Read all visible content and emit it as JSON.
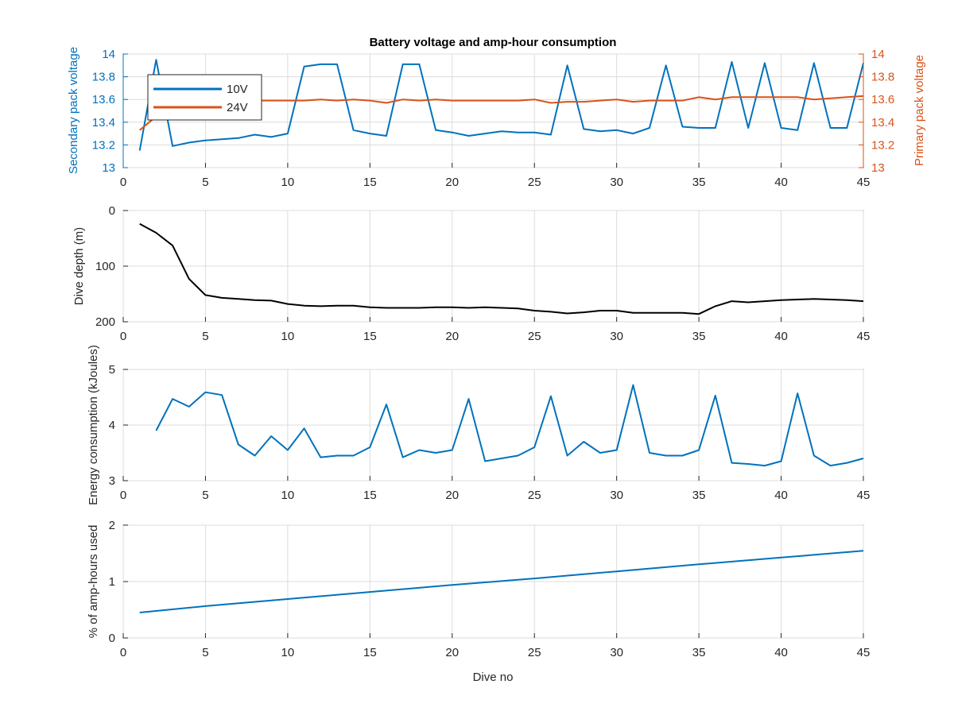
{
  "colors": {
    "blue": "#0072BD",
    "orange": "#D95319",
    "black": "#000000",
    "axis": "#262626",
    "grid": "#dcdcdc"
  },
  "chart_data": [
    {
      "type": "line",
      "title": "Battery voltage and amp-hour consumption",
      "xlabel": "",
      "ylabel": "Secondary pack voltage",
      "ylabel_right": "Primary pack voltage",
      "xlim": [
        0,
        45
      ],
      "ylim": [
        13,
        14
      ],
      "ylim_right": [
        13,
        14
      ],
      "xticks": [
        0,
        5,
        10,
        15,
        20,
        25,
        30,
        35,
        40,
        45
      ],
      "yticks": [
        13,
        13.2,
        13.4,
        13.6,
        13.8,
        14
      ],
      "yticks_right": [
        13,
        13.2,
        13.4,
        13.6,
        13.8,
        14
      ],
      "grid": true,
      "legend": "top-left",
      "series": [
        {
          "name": "10V",
          "axis": "left",
          "color": "#0072BD",
          "x": [
            1,
            2,
            3,
            4,
            5,
            6,
            7,
            8,
            9,
            10,
            11,
            12,
            13,
            14,
            15,
            16,
            17,
            18,
            19,
            20,
            21,
            22,
            23,
            24,
            25,
            26,
            27,
            28,
            29,
            30,
            31,
            32,
            33,
            34,
            35,
            36,
            37,
            38,
            39,
            40,
            41,
            42,
            43,
            44,
            45
          ],
          "values": [
            13.15,
            13.95,
            13.19,
            13.22,
            13.24,
            13.25,
            13.26,
            13.29,
            13.27,
            13.3,
            13.89,
            13.91,
            13.91,
            13.33,
            13.3,
            13.28,
            13.91,
            13.91,
            13.33,
            13.31,
            13.28,
            13.3,
            13.32,
            13.31,
            13.31,
            13.29,
            13.9,
            13.34,
            13.32,
            13.33,
            13.3,
            13.35,
            13.9,
            13.36,
            13.35,
            13.35,
            13.93,
            13.35,
            13.92,
            13.35,
            13.33,
            13.92,
            13.35,
            13.35,
            13.92
          ]
        },
        {
          "name": "24V",
          "axis": "right",
          "color": "#D95319",
          "x": [
            1,
            2,
            3,
            4,
            5,
            6,
            7,
            8,
            9,
            10,
            11,
            12,
            13,
            14,
            15,
            16,
            17,
            18,
            19,
            20,
            21,
            22,
            23,
            24,
            25,
            26,
            27,
            28,
            29,
            30,
            31,
            32,
            33,
            34,
            35,
            36,
            37,
            38,
            39,
            40,
            41,
            42,
            43,
            44,
            45
          ],
          "values": [
            13.33,
            13.45,
            13.55,
            13.57,
            13.58,
            13.59,
            13.59,
            13.59,
            13.59,
            13.59,
            13.59,
            13.6,
            13.59,
            13.6,
            13.59,
            13.57,
            13.6,
            13.59,
            13.6,
            13.59,
            13.59,
            13.59,
            13.59,
            13.59,
            13.6,
            13.57,
            13.58,
            13.58,
            13.59,
            13.6,
            13.58,
            13.59,
            13.59,
            13.59,
            13.62,
            13.6,
            13.62,
            13.62,
            13.62,
            13.62,
            13.62,
            13.6,
            13.61,
            13.62,
            13.63
          ]
        }
      ]
    },
    {
      "type": "line",
      "ylabel": "Dive depth (m)",
      "xlim": [
        0,
        45
      ],
      "ylim": [
        0,
        200
      ],
      "y_reversed": true,
      "xticks": [
        0,
        5,
        10,
        15,
        20,
        25,
        30,
        35,
        40,
        45
      ],
      "yticks": [
        0,
        100,
        200
      ],
      "grid": true,
      "series": [
        {
          "color": "#000000",
          "x": [
            1,
            2,
            3,
            4,
            5,
            6,
            7,
            8,
            9,
            10,
            11,
            12,
            13,
            14,
            15,
            16,
            17,
            18,
            19,
            20,
            21,
            22,
            23,
            24,
            25,
            26,
            27,
            28,
            29,
            30,
            31,
            32,
            33,
            34,
            35,
            36,
            37,
            38,
            39,
            40,
            41,
            42,
            43,
            44,
            45
          ],
          "values": [
            24,
            40,
            63,
            123,
            152,
            157,
            159,
            161,
            162,
            168,
            171,
            172,
            171,
            171,
            174,
            175,
            175,
            175,
            174,
            174,
            175,
            174,
            175,
            176,
            180,
            182,
            185,
            183,
            180,
            180,
            184,
            184,
            184,
            184,
            186,
            172,
            163,
            165,
            163,
            161,
            160,
            159,
            160,
            161,
            163
          ]
        }
      ]
    },
    {
      "type": "line",
      "ylabel": "Energy consumption (kJoules)",
      "xlim": [
        0,
        45
      ],
      "ylim": [
        3,
        5
      ],
      "xticks": [
        0,
        5,
        10,
        15,
        20,
        25,
        30,
        35,
        40,
        45
      ],
      "yticks": [
        3,
        4,
        5
      ],
      "grid": true,
      "series": [
        {
          "color": "#0072BD",
          "x": [
            2,
            3,
            4,
            5,
            6,
            7,
            8,
            9,
            10,
            11,
            12,
            13,
            14,
            15,
            16,
            17,
            18,
            19,
            20,
            21,
            22,
            23,
            24,
            25,
            26,
            27,
            28,
            29,
            30,
            31,
            32,
            33,
            34,
            35,
            36,
            37,
            38,
            39,
            40,
            41,
            42,
            43,
            44,
            45
          ],
          "values": [
            3.9,
            4.47,
            4.33,
            4.59,
            4.54,
            3.65,
            3.45,
            3.8,
            3.55,
            3.94,
            3.42,
            3.45,
            3.45,
            3.6,
            4.37,
            3.42,
            3.55,
            3.5,
            3.55,
            4.47,
            3.35,
            3.4,
            3.45,
            3.6,
            4.52,
            3.45,
            3.7,
            3.5,
            3.55,
            4.72,
            3.5,
            3.45,
            3.45,
            3.55,
            4.53,
            3.32,
            3.3,
            3.27,
            3.35,
            4.57,
            3.45,
            3.27,
            3.32,
            3.4
          ]
        }
      ]
    },
    {
      "type": "line",
      "ylabel": "% of amp-hours used",
      "xlabel": "Dive no",
      "xlim": [
        0,
        45
      ],
      "ylim": [
        0,
        2
      ],
      "xticks": [
        0,
        5,
        10,
        15,
        20,
        25,
        30,
        35,
        40,
        45
      ],
      "yticks": [
        0,
        1,
        2
      ],
      "grid": true,
      "series": [
        {
          "color": "#0072BD",
          "x": [
            1,
            5,
            10,
            15,
            20,
            25,
            30,
            35,
            40,
            45
          ],
          "values": [
            0.45,
            0.565,
            0.69,
            0.815,
            0.94,
            1.055,
            1.18,
            1.305,
            1.425,
            1.545
          ]
        }
      ]
    }
  ]
}
